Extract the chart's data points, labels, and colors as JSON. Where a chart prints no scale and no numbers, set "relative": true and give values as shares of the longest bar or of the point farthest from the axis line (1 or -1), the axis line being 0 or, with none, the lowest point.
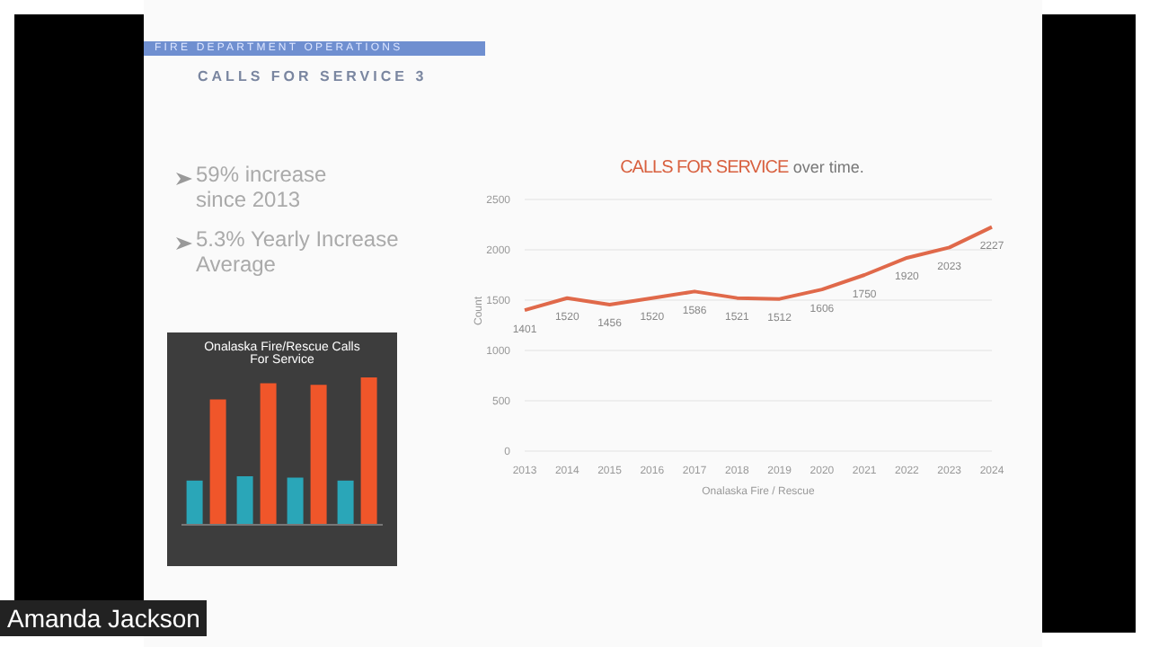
{
  "chart_data": [
    {
      "type": "line",
      "title": "CALLS FOR SERVICE",
      "subtitle": "over time.",
      "xlabel": "Onalaska Fire / Rescue",
      "ylabel": "Count",
      "categories": [
        "2013",
        "2014",
        "2015",
        "2016",
        "2017",
        "2018",
        "2019",
        "2020",
        "2021",
        "2022",
        "2023",
        "2024"
      ],
      "series": [
        {
          "color": "#e0694a",
          "values": [
            1401,
            1520,
            1456,
            1520,
            1586,
            1521,
            1512,
            1606,
            1750,
            1920,
            2023,
            2227
          ]
        }
      ],
      "ylim": [
        0,
        2500
      ],
      "yticks": [
        0,
        500,
        1000,
        1500,
        2000,
        2500
      ],
      "grid": "y",
      "data_labels": true,
      "marker": "none",
      "line_style": "solid",
      "annotations": [
        "FIRE DEPARTMENT OPERATIONS",
        "CALLS FOR SERVICE 3",
        "59% increase since 2013",
        "5.3% Yearly Increase Average",
        "Amanda Jackson"
      ]
    },
    {
      "type": "bar",
      "title": "Onalaska Fire/Rescue Calls For Service",
      "relative": true,
      "categories": [
        null,
        null,
        null,
        null
      ],
      "series": [
        {
          "color": "#2aa6b8",
          "values": [
            0.3,
            0.33,
            0.32,
            0.3
          ]
        },
        {
          "color": "#f0562a",
          "values": [
            0.85,
            0.96,
            0.95,
            1
          ]
        }
      ]
    }
  ]
}
